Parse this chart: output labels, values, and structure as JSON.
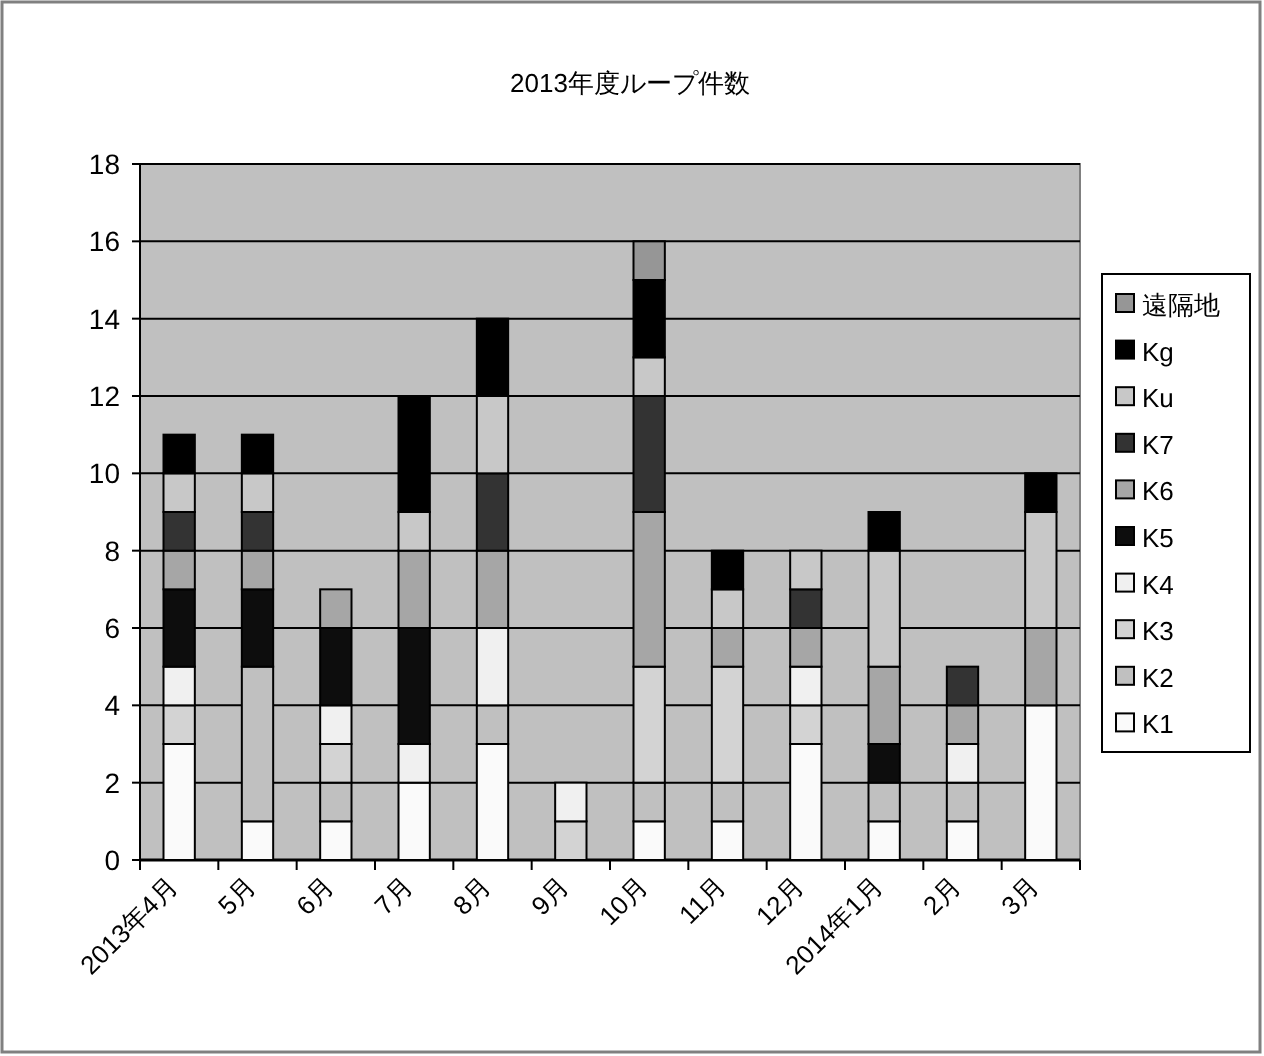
{
  "chart_data": {
    "type": "bar",
    "stacked": true,
    "title": "2013年度ループ件数",
    "categories": [
      "2013年4月",
      "5月",
      "6月",
      "7月",
      "8月",
      "9月",
      "10月",
      "11月",
      "12月",
      "2014年1月",
      "2月",
      "3月"
    ],
    "ylim": [
      0,
      18
    ],
    "yticks": [
      0,
      2,
      4,
      6,
      8,
      10,
      12,
      14,
      16,
      18
    ],
    "grid": "y",
    "legend": "right",
    "series": [
      {
        "name": "K1",
        "color": "#fafafa",
        "values": [
          3,
          1,
          1,
          2,
          3,
          0,
          1,
          1,
          3,
          1,
          1,
          4
        ]
      },
      {
        "name": "K2",
        "color": "#c0c0c0",
        "values": [
          0,
          4,
          1,
          0,
          1,
          0,
          1,
          1,
          0,
          1,
          1,
          0
        ]
      },
      {
        "name": "K3",
        "color": "#d3d3d3",
        "values": [
          1,
          0,
          1,
          0,
          0,
          1,
          3,
          3,
          1,
          0,
          0,
          0
        ]
      },
      {
        "name": "K4",
        "color": "#f0f0f0",
        "values": [
          1,
          0,
          1,
          1,
          2,
          1,
          0,
          0,
          1,
          0,
          1,
          0
        ]
      },
      {
        "name": "K5",
        "color": "#0d0d0d",
        "values": [
          2,
          2,
          2,
          3,
          0,
          0,
          0,
          0,
          0,
          1,
          0,
          0
        ]
      },
      {
        "name": "K6",
        "color": "#a6a6a6",
        "values": [
          1,
          1,
          1,
          2,
          2,
          0,
          4,
          1,
          1,
          2,
          1,
          2
        ]
      },
      {
        "name": "K7",
        "color": "#333333",
        "values": [
          1,
          1,
          0,
          0,
          2,
          0,
          3,
          0,
          1,
          0,
          1,
          0
        ]
      },
      {
        "name": "Ku",
        "color": "#c8c8c8",
        "values": [
          1,
          1,
          0,
          1,
          2,
          0,
          1,
          1,
          1,
          3,
          0,
          3
        ]
      },
      {
        "name": "Kg",
        "color": "#000000",
        "values": [
          1,
          1,
          0,
          3,
          2,
          0,
          2,
          1,
          0,
          1,
          0,
          1
        ]
      },
      {
        "name": "遠隔地",
        "color": "#969696",
        "values": [
          0,
          0,
          0,
          0,
          0,
          0,
          1,
          0,
          0,
          0,
          0,
          0
        ]
      }
    ]
  }
}
